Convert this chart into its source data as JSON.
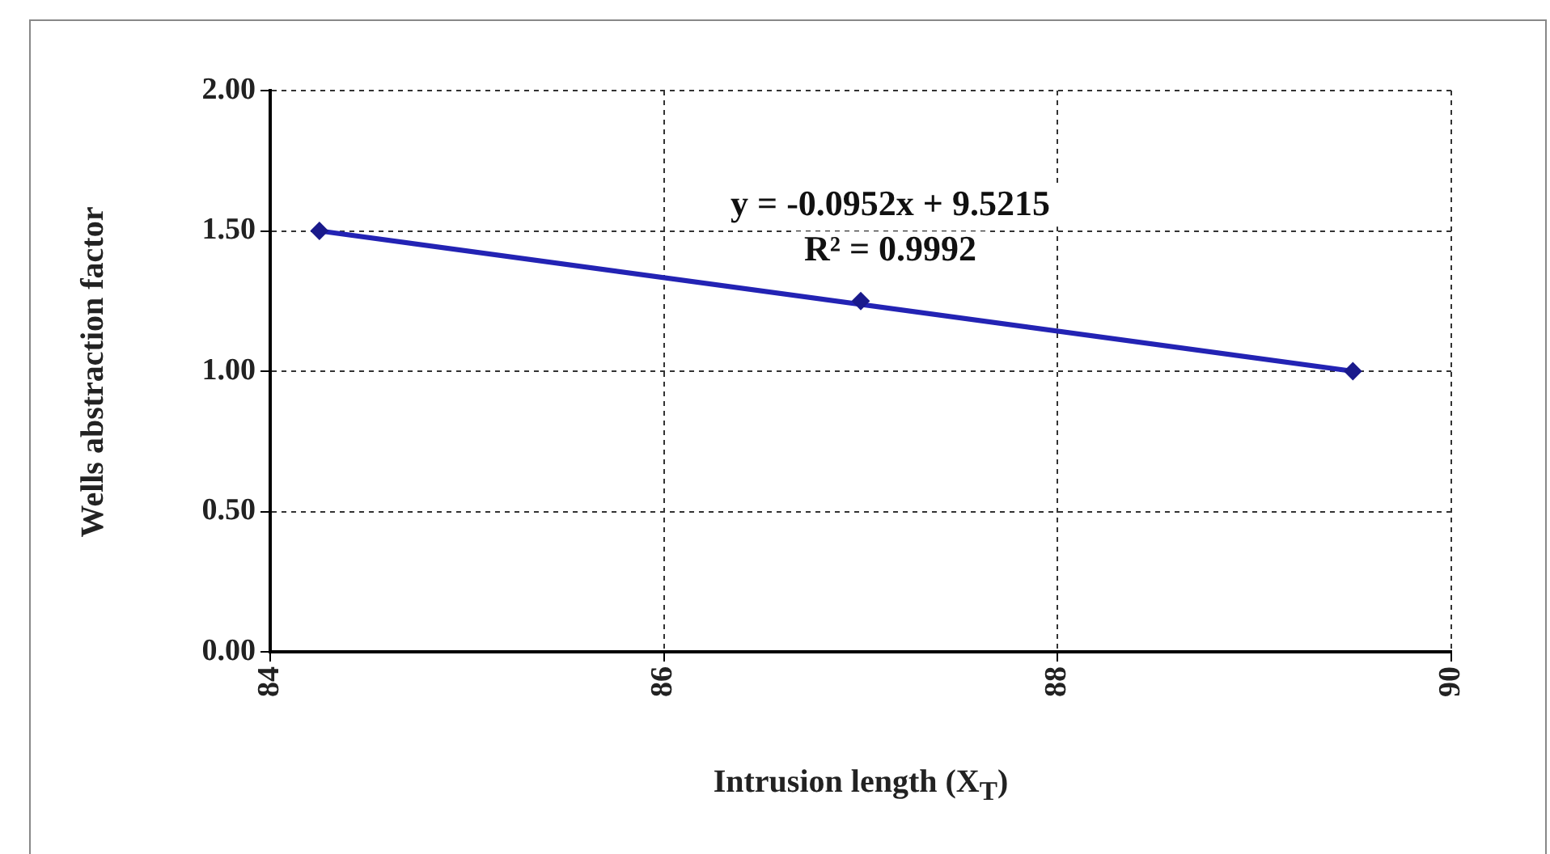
{
  "chart_data": {
    "type": "scatter",
    "xlabel": "Intrusion length (X$_{T}$)",
    "ylabel": "Wells abstraction factor",
    "xlim": [
      84,
      90
    ],
    "xticks": [
      84,
      86,
      88,
      90
    ],
    "ylim": [
      0,
      2
    ],
    "yticks": [
      {
        "value": 0,
        "label": "0.00"
      },
      {
        "value": 0.5,
        "label": "0.50"
      },
      {
        "value": 1,
        "label": "1.00"
      },
      {
        "value": 1.5,
        "label": "1.50"
      },
      {
        "value": 2,
        "label": "2.00"
      }
    ],
    "grid": true,
    "legend": false,
    "series": [
      {
        "type": "line",
        "color": "#2323b4",
        "x": [
          84.25,
          89.5
        ],
        "values": [
          1.5,
          1.0
        ],
        "marker": "none"
      },
      {
        "type": "scatter",
        "color": "#1a1a8c",
        "x": [
          84.25,
          87,
          89.5
        ],
        "values": [
          1.5,
          1.25,
          1.0
        ],
        "marker": "diamond"
      }
    ],
    "annotations": [
      "y = -0.0952x + 9.5215",
      "R² = 0.9992"
    ]
  }
}
